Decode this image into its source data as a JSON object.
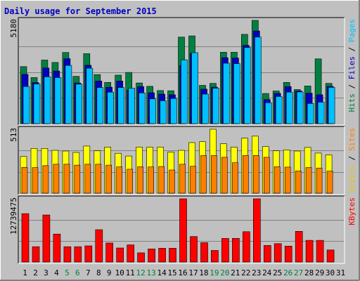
{
  "chart_data": {
    "type": "bar",
    "title": "Daily usage for September 2015",
    "categories": [
      "1",
      "2",
      "3",
      "4",
      "5",
      "6",
      "7",
      "8",
      "9",
      "10",
      "11",
      "12",
      "13",
      "14",
      "15",
      "16",
      "17",
      "18",
      "19",
      "20",
      "21",
      "22",
      "23",
      "24",
      "25",
      "26",
      "27",
      "28",
      "29",
      "30",
      "31"
    ],
    "weekend_days": [
      5,
      6,
      12,
      13,
      19,
      20,
      26,
      27
    ],
    "panels": [
      {
        "id": "hits-panel",
        "max_label": "5180",
        "ymax": 5180,
        "right_labels": [
          {
            "text": "Hits",
            "color": "#008040"
          },
          {
            "text": " / ",
            "color": "#000000"
          },
          {
            "text": "Files",
            "color": "#0000C0"
          },
          {
            "text": " / ",
            "color": "#000000"
          },
          {
            "text": "Pages",
            "color": "#00C0FF"
          }
        ],
        "series": [
          {
            "name": "Hits",
            "color": "#008040",
            "values": [
              2860,
              2310,
              3190,
              3070,
              3570,
              2370,
              3510,
              2460,
              2070,
              2430,
              2570,
              2040,
              1870,
              1660,
              1650,
              4340,
              4400,
              1920,
              2020,
              3580,
              3580,
              4480,
              5180,
              1510,
              1640,
              2070,
              1710,
              1890,
              3250,
              2020,
              0
            ]
          },
          {
            "name": "Files",
            "color": "#0000C0",
            "values": [
              2470,
              2060,
              2790,
              2640,
              3260,
              2040,
              2930,
              2140,
              1830,
              2140,
              1680,
              1860,
              1550,
              1480,
              1450,
              2920,
              3520,
              1730,
              1830,
              3310,
              3290,
              3930,
              4650,
              1210,
              1520,
              1860,
              1640,
              1530,
              1450,
              1870,
              0
            ]
          },
          {
            "name": "Pages",
            "color": "#00C0FF",
            "values": [
              1860,
              1990,
              2350,
              2310,
              2920,
              1980,
              2780,
              1810,
              1580,
              1810,
              1780,
              1540,
              1240,
              1150,
              1260,
              3200,
              3560,
              1480,
              1780,
              3030,
              3010,
              3820,
              4340,
              1050,
              1360,
              1580,
              1590,
              1010,
              1080,
              1820,
              0
            ]
          }
        ]
      },
      {
        "id": "visits-panel",
        "max_label": "513",
        "ymax": 513,
        "right_labels": [
          {
            "text": "Visits",
            "color": "#F0C000"
          },
          {
            "text": " / ",
            "color": "#000000"
          },
          {
            "text": "Sites",
            "color": "#FF8000"
          }
        ],
        "series": [
          {
            "name": "Visits",
            "color": "#FFFF00",
            "values": [
              294,
              359,
              359,
              344,
              338,
              327,
              378,
              340,
              369,
              320,
              298,
              370,
              370,
              370,
              330,
              344,
              406,
              413,
              513,
              397,
              370,
              442,
              458,
              374,
              340,
              348,
              338,
              367,
              322,
              307,
              0
            ]
          },
          {
            "name": "Sites",
            "color": "#FF8000",
            "values": [
              207,
              205,
              221,
              232,
              232,
              225,
              232,
              232,
              225,
              211,
              192,
              212,
              210,
              214,
              186,
              232,
              216,
              302,
              302,
              288,
              244,
              302,
              302,
              288,
              212,
              209,
              178,
              206,
              202,
              177,
              0
            ]
          }
        ]
      },
      {
        "id": "kbytes-panel",
        "max_label": "12739475",
        "ymax": 12739475,
        "right_labels": [
          {
            "text": "KBytes",
            "color": "#FF0000"
          }
        ],
        "series": [
          {
            "name": "KBytes",
            "color": "#FF0000",
            "values": [
              9750000,
              3080000,
              9480000,
              5630000,
              3080000,
              3080000,
              3250000,
              6510000,
              3830000,
              2830000,
              3460000,
              1850000,
              2630000,
              2770000,
              2770000,
              12740000,
              5140000,
              3900000,
              2330000,
              4760000,
              4770000,
              6120000,
              12740000,
              3340000,
              3710000,
              3220000,
              6180000,
              4370000,
              4370000,
              2440000,
              0
            ]
          }
        ]
      }
    ],
    "colors": {
      "background": "#C0C0C0",
      "plot_bg": "#C0C0C0",
      "grid": "#808080",
      "title": "#0000C0",
      "axis_text": "#000000",
      "weekend_text": "#007F3F"
    }
  }
}
